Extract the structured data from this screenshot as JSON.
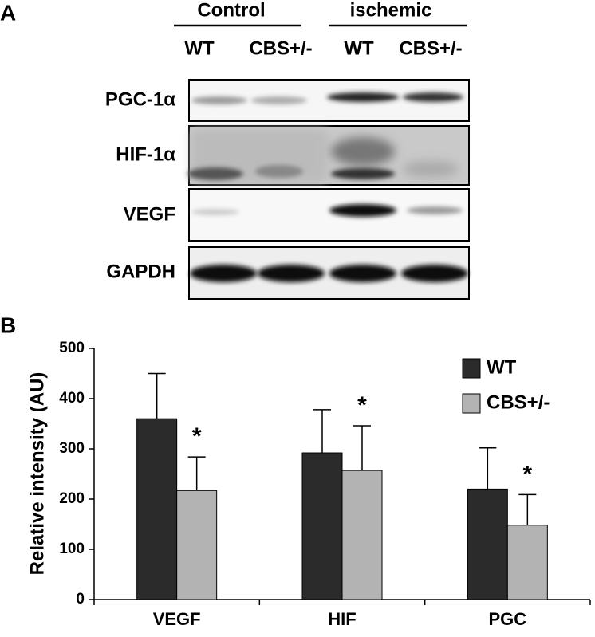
{
  "panels": {
    "a": "A",
    "b": "B"
  },
  "blot": {
    "groups": [
      "Control",
      "ischemic"
    ],
    "lanes": [
      "WT",
      "CBS+/-",
      "WT",
      "CBS+/-"
    ],
    "rows": [
      "PGC-1α",
      "HIF-1α",
      "VEGF",
      "GAPDH"
    ]
  },
  "chart_data": {
    "type": "bar",
    "y_label": "Relative intensity (AU)",
    "categories": [
      "VEGF",
      "HIF",
      "PGC"
    ],
    "series": [
      {
        "name": "WT",
        "color": "#2b2b2b",
        "values": [
          360,
          292,
          220
        ],
        "errors": [
          90,
          86,
          82
        ]
      },
      {
        "name": "CBS+/-",
        "color": "#b3b3b3",
        "values": [
          217,
          257,
          148
        ],
        "errors": [
          67,
          89,
          61
        ]
      }
    ],
    "annotations": [
      "*",
      "*",
      "*"
    ],
    "ylim": [
      0,
      500
    ],
    "yticks": [
      0,
      100,
      200,
      300,
      400,
      500
    ],
    "legend": "upper right"
  }
}
